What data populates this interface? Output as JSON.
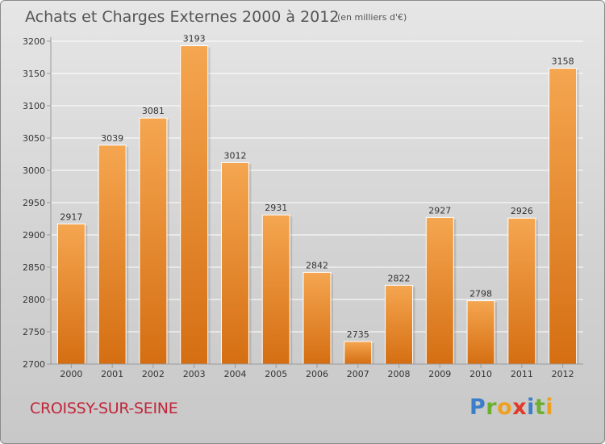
{
  "colors": {
    "bar_light": "#f5a650",
    "bar_dark": "#d56e12",
    "axis": "#9a9a9a",
    "grid": "#ffffff",
    "location_text": "#c0263a"
  },
  "header": {
    "title": "Achats et Charges Externes 2000 à 2012",
    "unit": "(en milliers d'€)"
  },
  "footer": {
    "location": "CROISSY-SUR-SEINE",
    "logo_letters": [
      {
        "ch": "P",
        "color": "#3a7fc8"
      },
      {
        "ch": "r",
        "color": "#6bb02e"
      },
      {
        "ch": "o",
        "color": "#f0a020"
      },
      {
        "ch": "x",
        "color": "#e03a2a"
      },
      {
        "ch": "i",
        "color": "#3a7fc8"
      },
      {
        "ch": "t",
        "color": "#6bb02e"
      },
      {
        "ch": "i",
        "color": "#f0a020"
      }
    ]
  },
  "chart_data": {
    "type": "bar",
    "title": "Achats et Charges Externes 2000 à 2012",
    "subtitle": "(en milliers d'€)",
    "categories": [
      "2000",
      "2001",
      "2002",
      "2003",
      "2004",
      "2005",
      "2006",
      "2007",
      "2008",
      "2009",
      "2010",
      "2011",
      "2012"
    ],
    "values": [
      2917,
      3039,
      3081,
      3193,
      3012,
      2931,
      2842,
      2735,
      2822,
      2927,
      2798,
      2926,
      3158
    ],
    "ylim": [
      2700,
      3200
    ],
    "yticks": [
      2700,
      2750,
      2800,
      2850,
      2900,
      2950,
      3000,
      3050,
      3100,
      3150,
      3200
    ],
    "grid": true,
    "legend": "none"
  }
}
